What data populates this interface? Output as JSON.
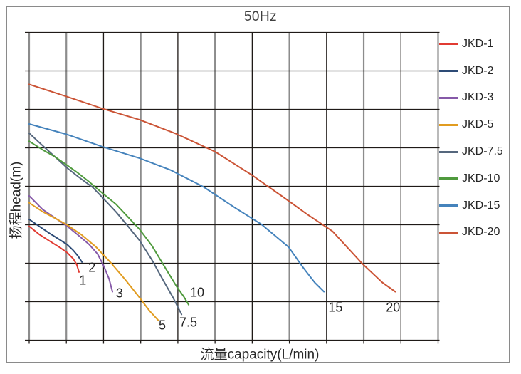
{
  "header": {
    "title": "50Hz"
  },
  "chart_data": {
    "type": "line",
    "title": "50Hz",
    "xlabel": "流量capacity(L/min)",
    "ylabel": "扬程head(m)",
    "x_range": [
      0,
      11
    ],
    "y_range": [
      0,
      8
    ],
    "grid": "on",
    "tick_labels": "none",
    "legend_position": "right",
    "note": "axes have no numeric tick labels; point units are grid cells (x: 0-11 left to right, y: 0-8 bottom to top)",
    "series": [
      {
        "name": "JKD-1",
        "color": "#e13b32",
        "end_label": {
          "text": "1",
          "x": 1.44,
          "y": 1.53
        },
        "points": [
          [
            0,
            2.96
          ],
          [
            0.27,
            2.75
          ],
          [
            0.56,
            2.57
          ],
          [
            0.84,
            2.4
          ],
          [
            1.03,
            2.27
          ],
          [
            1.19,
            2.11
          ],
          [
            1.28,
            1.96
          ],
          [
            1.34,
            1.77
          ]
        ]
      },
      {
        "name": "JKD-2",
        "color": "#2d4b76",
        "end_label": {
          "text": "2",
          "x": 1.69,
          "y": 1.87
        },
        "points": [
          [
            0,
            3.14
          ],
          [
            0.27,
            2.96
          ],
          [
            0.56,
            2.77
          ],
          [
            0.84,
            2.6
          ],
          [
            1.03,
            2.48
          ],
          [
            1.19,
            2.33
          ],
          [
            1.32,
            2.18
          ],
          [
            1.42,
            2.03
          ]
        ]
      },
      {
        "name": "JKD-3",
        "color": "#8659a8",
        "end_label": {
          "text": "3",
          "x": 2.43,
          "y": 1.2
        },
        "points": [
          [
            0,
            3.75
          ],
          [
            0.36,
            3.4
          ],
          [
            0.75,
            3.14
          ],
          [
            1.03,
            2.96
          ],
          [
            1.32,
            2.73
          ],
          [
            1.61,
            2.49
          ],
          [
            1.84,
            2.24
          ],
          [
            2.01,
            1.92
          ],
          [
            2.15,
            1.59
          ],
          [
            2.24,
            1.26
          ]
        ]
      },
      {
        "name": "JKD-5",
        "color": "#e19c20",
        "end_label": {
          "text": "5",
          "x": 3.58,
          "y": 0.37
        },
        "points": [
          [
            0,
            3.57
          ],
          [
            0.36,
            3.34
          ],
          [
            0.75,
            3.14
          ],
          [
            1.03,
            2.99
          ],
          [
            1.42,
            2.73
          ],
          [
            1.8,
            2.42
          ],
          [
            2.18,
            2.03
          ],
          [
            2.57,
            1.59
          ],
          [
            2.95,
            1.13
          ],
          [
            3.24,
            0.76
          ],
          [
            3.47,
            0.52
          ]
        ]
      },
      {
        "name": "JKD-7.5",
        "color": "#55677d",
        "end_label": {
          "text": "7.5",
          "x": 4.28,
          "y": 0.44
        },
        "points": [
          [
            0,
            5.38
          ],
          [
            0.36,
            5.06
          ],
          [
            0.69,
            4.77
          ],
          [
            1.03,
            4.47
          ],
          [
            1.32,
            4.25
          ],
          [
            1.71,
            3.97
          ],
          [
            1.97,
            3.71
          ],
          [
            2.34,
            3.33
          ],
          [
            2.66,
            2.96
          ],
          [
            2.97,
            2.59
          ],
          [
            3.3,
            2.09
          ],
          [
            3.62,
            1.53
          ],
          [
            3.87,
            1.11
          ],
          [
            4.1,
            0.67
          ]
        ]
      },
      {
        "name": "JKD-10",
        "color": "#4f9a3d",
        "end_label": {
          "text": "10",
          "x": 4.52,
          "y": 1.22
        },
        "points": [
          [
            0,
            5.17
          ],
          [
            0.36,
            4.95
          ],
          [
            0.69,
            4.77
          ],
          [
            1.03,
            4.54
          ],
          [
            1.32,
            4.34
          ],
          [
            1.61,
            4.12
          ],
          [
            1.9,
            3.88
          ],
          [
            2.34,
            3.53
          ],
          [
            2.66,
            3.2
          ],
          [
            2.97,
            2.88
          ],
          [
            3.3,
            2.46
          ],
          [
            3.68,
            1.85
          ],
          [
            3.97,
            1.39
          ],
          [
            4.16,
            1.13
          ],
          [
            4.29,
            0.92
          ]
        ]
      },
      {
        "name": "JKD-15",
        "color": "#4583bc",
        "end_label": {
          "text": "15",
          "x": 8.24,
          "y": 0.83
        },
        "points": [
          [
            0,
            5.62
          ],
          [
            0.98,
            5.36
          ],
          [
            1.97,
            5.03
          ],
          [
            2.97,
            4.73
          ],
          [
            3.81,
            4.42
          ],
          [
            4.68,
            3.99
          ],
          [
            5.54,
            3.44
          ],
          [
            6.25,
            3.01
          ],
          [
            6.98,
            2.42
          ],
          [
            7.36,
            1.9
          ],
          [
            7.68,
            1.5
          ],
          [
            7.93,
            1.26
          ]
        ]
      },
      {
        "name": "JKD-20",
        "color": "#cb5436",
        "end_label": {
          "text": "20",
          "x": 9.79,
          "y": 0.83
        },
        "points": [
          [
            0,
            6.65
          ],
          [
            0.98,
            6.34
          ],
          [
            1.97,
            6.02
          ],
          [
            2.97,
            5.73
          ],
          [
            3.97,
            5.36
          ],
          [
            5.0,
            4.9
          ],
          [
            5.98,
            4.3
          ],
          [
            6.98,
            3.62
          ],
          [
            7.45,
            3.29
          ],
          [
            8.16,
            2.83
          ],
          [
            8.95,
            2.0
          ],
          [
            9.5,
            1.5
          ],
          [
            9.85,
            1.26
          ]
        ]
      }
    ]
  }
}
